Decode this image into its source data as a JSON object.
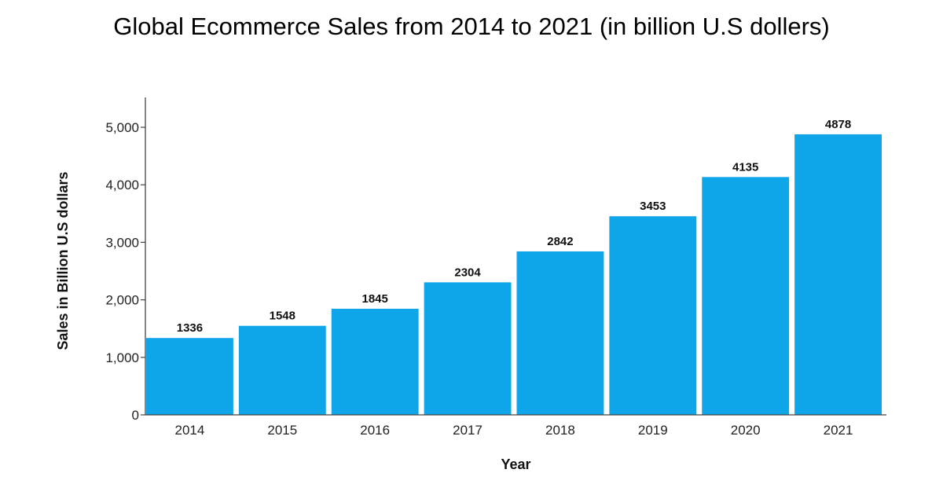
{
  "chart_data": {
    "type": "bar",
    "title": "Global Ecommerce Sales from 2014 to 2021 (in billion U.S dollers)",
    "xlabel": "Year",
    "ylabel": "Sales in Billion U.S dollars",
    "categories": [
      "2014",
      "2015",
      "2016",
      "2017",
      "2018",
      "2019",
      "2020",
      "2021"
    ],
    "values": [
      1336,
      1548,
      1845,
      2304,
      2842,
      3453,
      4135,
      4878
    ],
    "data_labels": [
      "1336",
      "1548",
      "1845",
      "2304",
      "2842",
      "3453",
      "4135",
      "4878"
    ],
    "yticks": [
      0,
      1000,
      2000,
      3000,
      4000,
      5000
    ],
    "ytick_labels": [
      "0",
      "1,000",
      "2,000",
      "3,000",
      "4,000",
      "5,000"
    ],
    "ylim": [
      0,
      5500
    ],
    "grid": false,
    "legend": "none",
    "bar_color": "#0ea5e9",
    "axis_color": "#444444"
  }
}
